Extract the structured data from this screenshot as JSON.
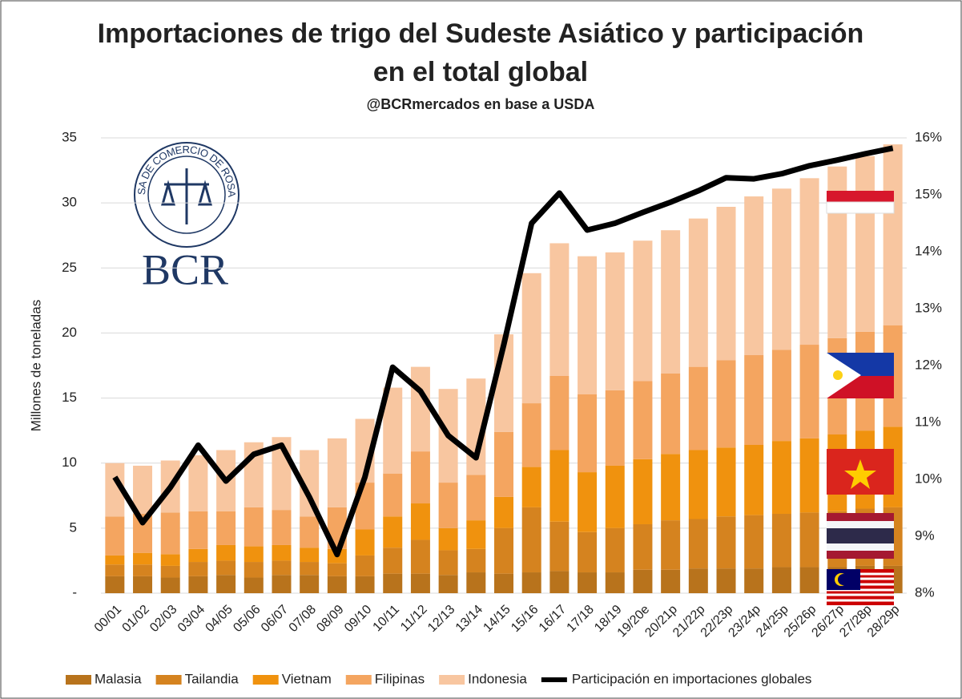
{
  "chart_data": {
    "type": "bar",
    "stacked": true,
    "title": "Importaciones de trigo del Sudeste Asiático y participación en el total global",
    "subtitle": "@BCRmercados en base a USDA",
    "y_label": "Millones de toneladas",
    "logo_text": "BCR",
    "logo_ring": "BOLSA DE COMERCIO DE ROSARIO",
    "categories": [
      "00/01",
      "01/02",
      "02/03",
      "03/04",
      "04/05",
      "05/06",
      "06/07",
      "07/08",
      "08/09",
      "09/10",
      "10/11",
      "11/12",
      "12/13",
      "13/14",
      "14/15",
      "15/16",
      "16/17",
      "17/18",
      "18/19",
      "19/20e",
      "20/21p",
      "21/22p",
      "22/23p",
      "23/24p",
      "24/25p",
      "25/26p",
      "26/27p",
      "27/28p",
      "28/29p"
    ],
    "series": [
      {
        "name": "Malasia",
        "color": "#b8731c",
        "values": [
          1.3,
          1.3,
          1.2,
          1.3,
          1.4,
          1.2,
          1.4,
          1.4,
          1.3,
          1.3,
          1.5,
          1.5,
          1.4,
          1.6,
          1.5,
          1.6,
          1.7,
          1.6,
          1.6,
          1.8,
          1.8,
          1.9,
          1.9,
          1.9,
          2.0,
          2.0,
          2.0,
          2.1,
          2.1
        ]
      },
      {
        "name": "Tailandia",
        "color": "#d5831f",
        "values": [
          0.9,
          0.9,
          0.9,
          1.1,
          1.1,
          1.2,
          1.1,
          1.0,
          1.0,
          1.6,
          2.0,
          2.6,
          1.9,
          1.8,
          3.5,
          5.0,
          3.8,
          3.1,
          3.4,
          3.5,
          3.8,
          3.8,
          4.0,
          4.1,
          4.1,
          4.2,
          4.3,
          4.4,
          4.5
        ]
      },
      {
        "name": "Vietnam",
        "color": "#f0920e",
        "values": [
          0.7,
          0.9,
          0.9,
          1.0,
          1.2,
          1.2,
          1.2,
          1.1,
          1.1,
          2.0,
          2.4,
          2.8,
          1.7,
          2.2,
          2.4,
          3.1,
          5.5,
          4.6,
          4.8,
          5.0,
          5.1,
          5.3,
          5.3,
          5.4,
          5.6,
          5.7,
          5.9,
          6.0,
          6.2
        ]
      },
      {
        "name": "Filipinas",
        "color": "#f4a560",
        "values": [
          3.0,
          3.0,
          3.2,
          2.9,
          2.6,
          3.0,
          2.7,
          2.4,
          3.2,
          3.6,
          3.3,
          4.0,
          3.5,
          3.5,
          5.0,
          4.9,
          5.7,
          6.0,
          5.8,
          6.0,
          6.2,
          6.4,
          6.7,
          6.9,
          7.0,
          7.2,
          7.4,
          7.6,
          7.8
        ]
      },
      {
        "name": "Indonesia",
        "color": "#f8c6a0",
        "values": [
          4.1,
          3.7,
          4.0,
          4.3,
          4.7,
          5.0,
          5.6,
          5.1,
          5.3,
          4.9,
          6.6,
          6.5,
          7.2,
          7.4,
          7.5,
          10.0,
          10.2,
          10.6,
          10.6,
          10.8,
          11.0,
          11.4,
          11.8,
          12.2,
          12.4,
          12.8,
          13.2,
          13.5,
          13.9
        ]
      },
      {
        "name": "Participación en importaciones globales",
        "type": "line",
        "axis": "y2",
        "color": "#000000",
        "values": [
          10.04,
          9.24,
          9.86,
          10.6,
          9.97,
          10.44,
          10.6,
          9.69,
          8.68,
          10.04,
          11.97,
          11.55,
          10.77,
          10.38,
          12.37,
          14.5,
          15.03,
          14.38,
          14.5,
          14.69,
          14.87,
          15.07,
          15.3,
          15.28,
          15.37,
          15.51,
          15.61,
          15.72,
          15.82
        ]
      }
    ],
    "ylim": [
      0,
      35
    ],
    "yticks": [
      {
        "value": 0,
        "label": "-"
      },
      5,
      10,
      15,
      20,
      25,
      30,
      35
    ],
    "y2lim": [
      8,
      16
    ],
    "y2ticks": [
      {
        "value": 8,
        "label": "8%"
      },
      {
        "value": 9,
        "label": "9%"
      },
      {
        "value": 10,
        "label": "10%"
      },
      {
        "value": 11,
        "label": "11%"
      },
      {
        "value": 12,
        "label": "12%"
      },
      {
        "value": 13,
        "label": "13%"
      },
      {
        "value": 14,
        "label": "14%"
      },
      {
        "value": 15,
        "label": "15%"
      },
      {
        "value": 16,
        "label": "16%"
      }
    ],
    "grid": true,
    "legend": "bottom"
  }
}
